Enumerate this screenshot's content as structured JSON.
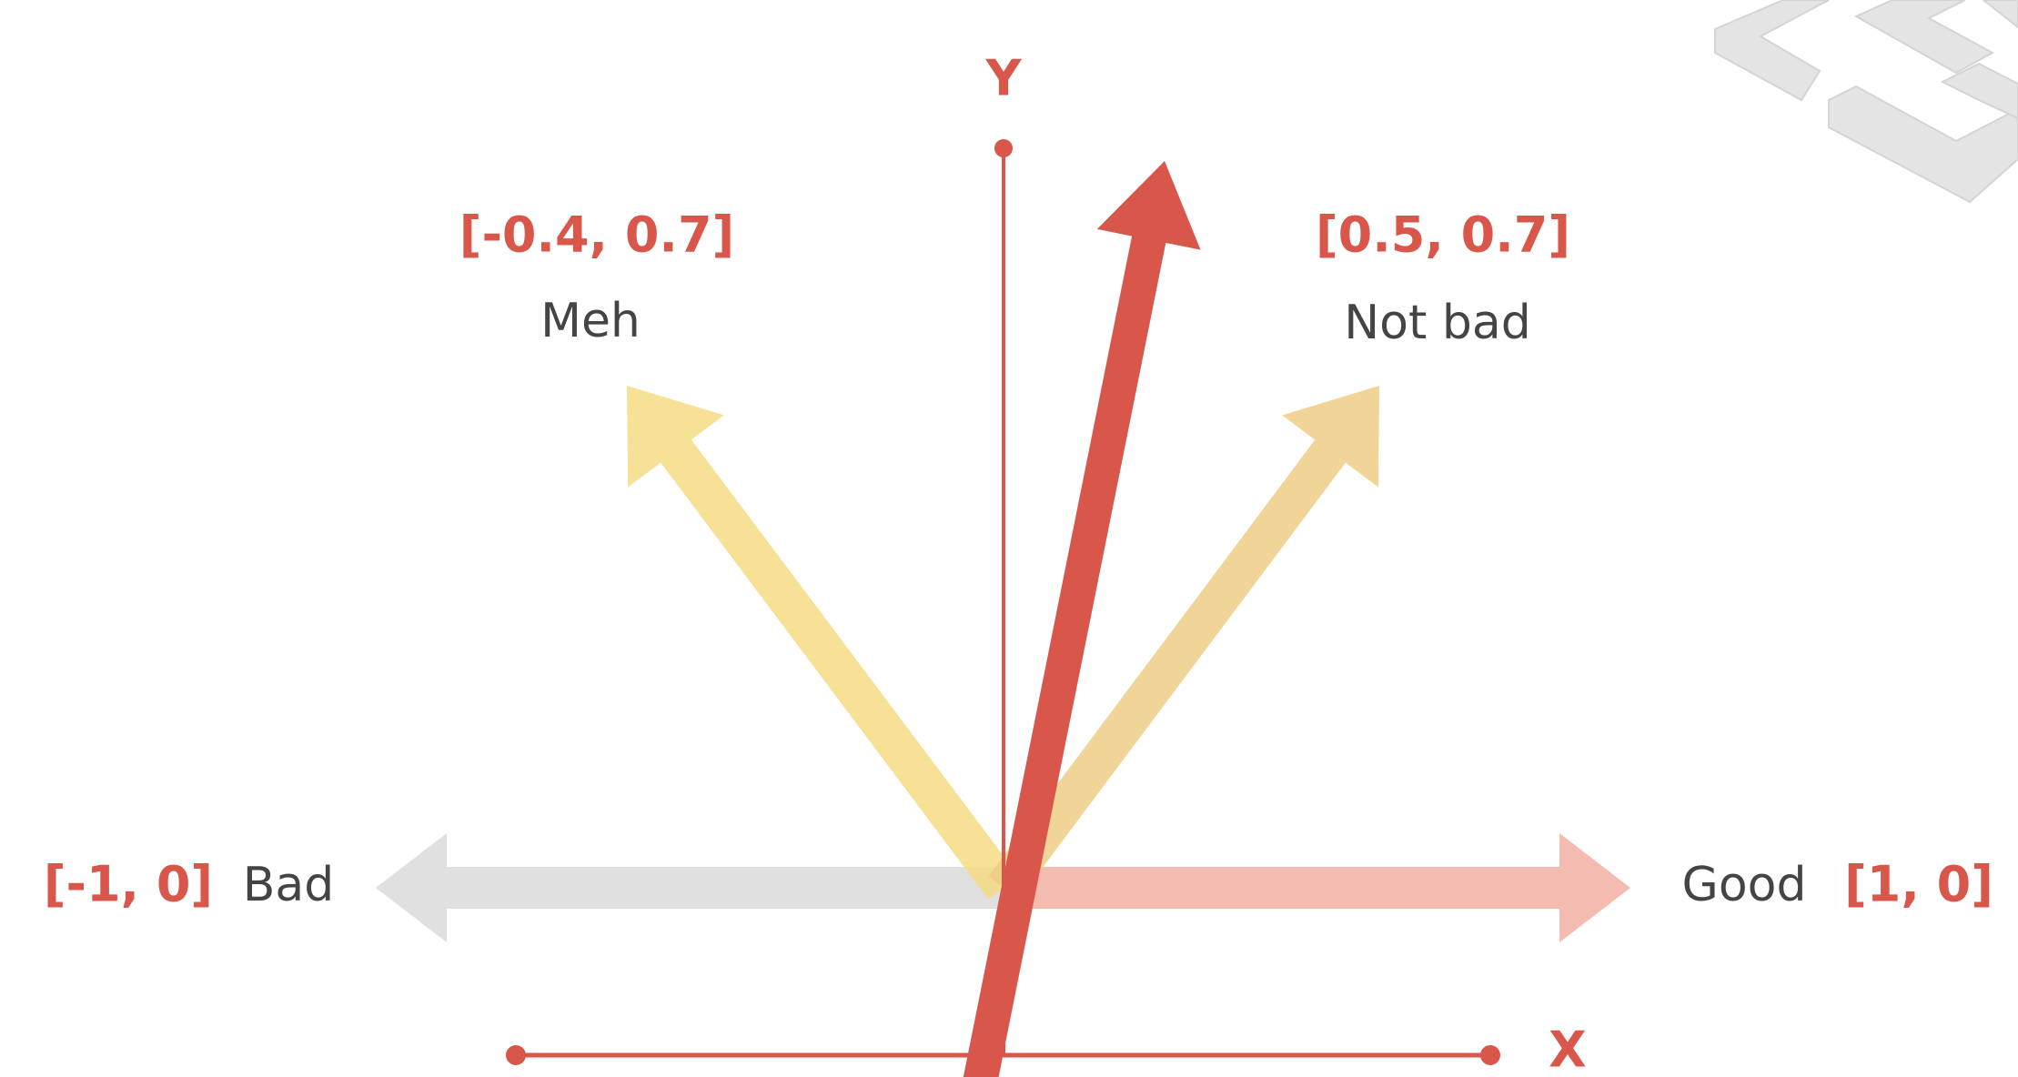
{
  "axes": {
    "y_label": "Y",
    "x_label": "X"
  },
  "vectors": [
    {
      "coords": "[-0.4, 0.7]",
      "label": "Meh"
    },
    {
      "coords": "[0.5, 0.7]",
      "label": "Not bad"
    },
    {
      "coords": "[-1, 0]",
      "label": "Bad"
    },
    {
      "coords": "[1, 0]",
      "label": "Good"
    }
  ]
}
